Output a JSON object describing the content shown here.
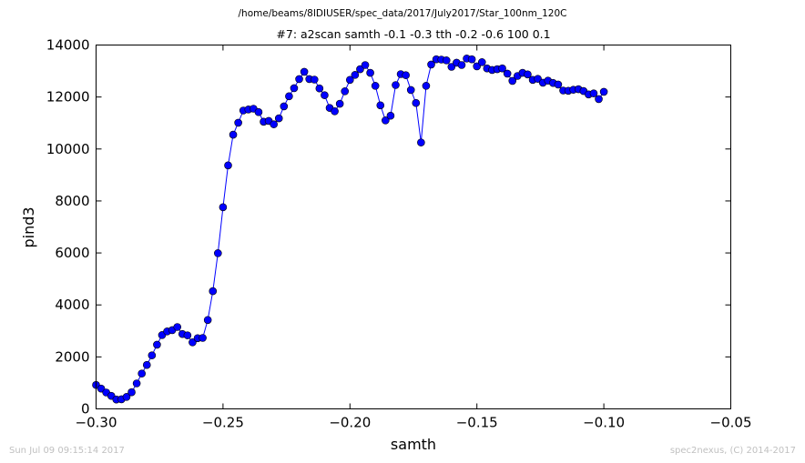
{
  "header": {
    "path_title": "/home/beams/8IDIUSER/spec_data/2017/July2017/Star_100nm_120C",
    "scan_title": "#7: a2scan  samth -0.1 -0.3  tth -0.2 -0.6  100 0.1"
  },
  "footer": {
    "timestamp": "Sun Jul 09 09:15:14 2017",
    "credit": "spec2nexus, (C) 2014-2017"
  },
  "chart_data": {
    "type": "line",
    "title": "#7: a2scan  samth -0.1 -0.3  tth -0.2 -0.6  100 0.1",
    "xlabel": "samth",
    "ylabel": "pind3",
    "xlim": [
      -0.3,
      -0.05
    ],
    "ylim": [
      0,
      14000
    ],
    "x_ticks": [
      -0.3,
      -0.25,
      -0.2,
      -0.15,
      -0.1,
      -0.05
    ],
    "x_tick_labels": [
      "−0.30",
      "−0.25",
      "−0.20",
      "−0.15",
      "−0.10",
      "−0.05"
    ],
    "y_ticks": [
      0,
      2000,
      4000,
      6000,
      8000,
      10000,
      12000,
      14000
    ],
    "y_tick_labels": [
      "0",
      "2000",
      "4000",
      "6000",
      "8000",
      "10000",
      "12000",
      "14000"
    ],
    "grid": false,
    "legend": "none",
    "colors": {
      "series": "#0000ff",
      "axes": "#000000"
    },
    "series": [
      {
        "marker": "circle",
        "x": [
          -0.3,
          -0.298,
          -0.296,
          -0.294,
          -0.292,
          -0.29,
          -0.288,
          -0.286,
          -0.284,
          -0.282,
          -0.28,
          -0.278,
          -0.276,
          -0.274,
          -0.272,
          -0.27,
          -0.268,
          -0.266,
          -0.264,
          -0.262,
          -0.26,
          -0.258,
          -0.256,
          -0.254,
          -0.252,
          -0.25,
          -0.248,
          -0.246,
          -0.244,
          -0.242,
          -0.24,
          -0.238,
          -0.236,
          -0.234,
          -0.232,
          -0.23,
          -0.228,
          -0.226,
          -0.224,
          -0.222,
          -0.22,
          -0.218,
          -0.216,
          -0.214,
          -0.212,
          -0.21,
          -0.208,
          -0.206,
          -0.204,
          -0.202,
          -0.2,
          -0.198,
          -0.196,
          -0.194,
          -0.192,
          -0.19,
          -0.188,
          -0.186,
          -0.184,
          -0.182,
          -0.18,
          -0.178,
          -0.176,
          -0.174,
          -0.172,
          -0.17,
          -0.168,
          -0.166,
          -0.164,
          -0.162,
          -0.16,
          -0.158,
          -0.156,
          -0.154,
          -0.152,
          -0.15,
          -0.148,
          -0.146,
          -0.144,
          -0.142,
          -0.14,
          -0.138,
          -0.136,
          -0.134,
          -0.132,
          -0.13,
          -0.128,
          -0.126,
          -0.124,
          -0.122,
          -0.12,
          -0.118,
          -0.116,
          -0.114,
          -0.112,
          -0.11,
          -0.108,
          -0.106,
          -0.104,
          -0.102,
          -0.1
        ],
        "y": [
          920,
          780,
          630,
          500,
          360,
          370,
          460,
          640,
          980,
          1360,
          1690,
          2060,
          2470,
          2840,
          2980,
          3030,
          3150,
          2880,
          2830,
          2560,
          2720,
          2730,
          3420,
          4530,
          5990,
          7760,
          9370,
          10550,
          11010,
          11480,
          11520,
          11550,
          11420,
          11050,
          11080,
          10950,
          11180,
          11640,
          12030,
          12340,
          12690,
          12970,
          12690,
          12670,
          12330,
          12070,
          11580,
          11450,
          11740,
          12220,
          12660,
          12850,
          13070,
          13230,
          12930,
          12430,
          11680,
          11100,
          11280,
          12460,
          12880,
          12840,
          12270,
          11770,
          10250,
          12430,
          13250,
          13450,
          13440,
          13410,
          13160,
          13320,
          13230,
          13480,
          13450,
          13180,
          13340,
          13100,
          13040,
          13070,
          13100,
          12900,
          12620,
          12810,
          12930,
          12870,
          12660,
          12700,
          12550,
          12630,
          12540,
          12480,
          12250,
          12240,
          12280,
          12300,
          12230,
          12100,
          12140,
          11920,
          12200
        ]
      }
    ]
  }
}
